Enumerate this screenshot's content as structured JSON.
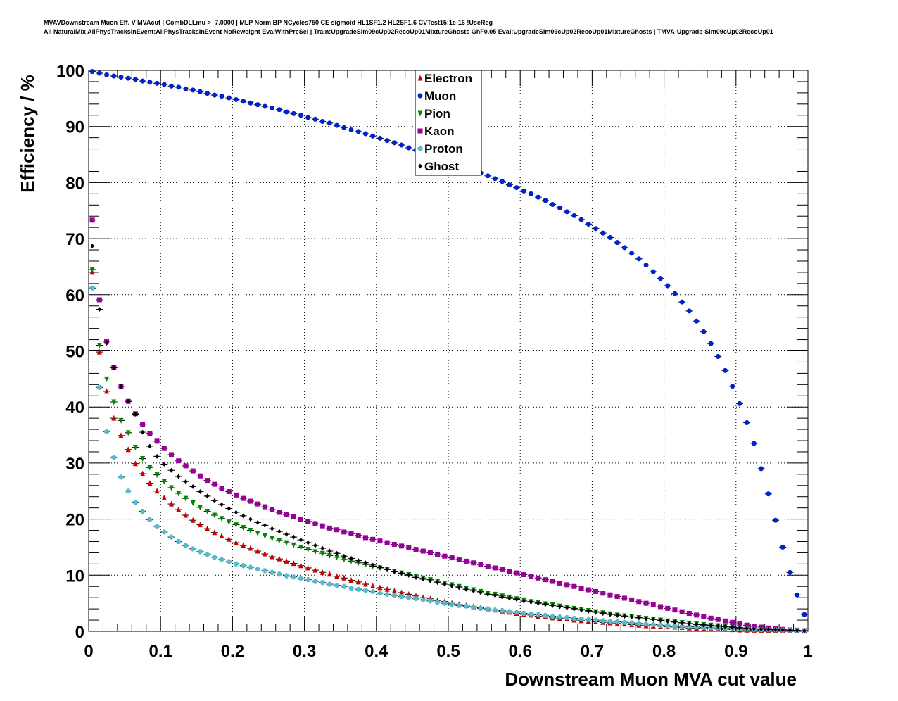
{
  "header": {
    "line1": "MVAVDownstream Muon Eff. V MVAcut | CombDLLmu > -7.0000 | MLP Norm BP NCycles750 CE sigmoid HL1SF1.2 HL2SF1.6 CVTest15:1e-16 !UseReg",
    "line2": "All NaturalMix AllPhysTracksInEvent:AllPhysTracksInEvent NoReweight EvalWithPreSel | Train:UpgradeSim09cUp02RecoUp01MixtureGhosts GhF0.05 Eval:UpgradeSim09cUp02RecoUp01MixtureGhosts | TMVA-Upgrade-Sim09cUp02RecoUp01"
  },
  "chart_data": {
    "type": "scatter",
    "title": "",
    "xlabel": "Downstream Muon MVA cut value",
    "ylabel": "Efficiency / %",
    "xlim": [
      0,
      1
    ],
    "ylim": [
      0,
      100
    ],
    "xticks": [
      "0",
      "0.1",
      "0.2",
      "0.3",
      "0.4",
      "0.5",
      "0.6",
      "0.7",
      "0.8",
      "0.9",
      "1"
    ],
    "yticks": [
      "0",
      "10",
      "20",
      "30",
      "40",
      "50",
      "60",
      "70",
      "80",
      "90",
      "100"
    ],
    "grid": "dotted",
    "legend_position": "top-center",
    "x": [
      0.005,
      0.015,
      0.025,
      0.035,
      0.045,
      0.055,
      0.065,
      0.075,
      0.085,
      0.095,
      0.105,
      0.115,
      0.125,
      0.135,
      0.145,
      0.155,
      0.165,
      0.175,
      0.185,
      0.195,
      0.205,
      0.215,
      0.225,
      0.235,
      0.245,
      0.255,
      0.265,
      0.275,
      0.285,
      0.295,
      0.305,
      0.315,
      0.325,
      0.335,
      0.345,
      0.355,
      0.365,
      0.375,
      0.385,
      0.395,
      0.405,
      0.415,
      0.425,
      0.435,
      0.445,
      0.455,
      0.465,
      0.475,
      0.485,
      0.495,
      0.505,
      0.515,
      0.525,
      0.535,
      0.545,
      0.555,
      0.565,
      0.575,
      0.585,
      0.595,
      0.605,
      0.615,
      0.625,
      0.635,
      0.645,
      0.655,
      0.665,
      0.675,
      0.685,
      0.695,
      0.705,
      0.715,
      0.725,
      0.735,
      0.745,
      0.755,
      0.765,
      0.775,
      0.785,
      0.795,
      0.805,
      0.815,
      0.825,
      0.835,
      0.845,
      0.855,
      0.865,
      0.875,
      0.885,
      0.895,
      0.905,
      0.915,
      0.925,
      0.935,
      0.945,
      0.955,
      0.965,
      0.975,
      0.985,
      0.995
    ],
    "series": [
      {
        "name": "Electron",
        "marker": "triangle-up",
        "color": "#cc0000",
        "values": [
          64.0,
          49.8,
          42.8,
          38.0,
          34.9,
          32.4,
          29.9,
          28.1,
          26.4,
          25.0,
          23.8,
          22.7,
          21.7,
          20.7,
          19.8,
          19.0,
          18.3,
          17.6,
          17.0,
          16.4,
          15.8,
          15.3,
          14.8,
          14.3,
          13.8,
          13.3,
          12.9,
          12.5,
          12.1,
          11.7,
          11.3,
          10.9,
          10.5,
          10.2,
          9.8,
          9.5,
          9.1,
          8.8,
          8.4,
          8.1,
          7.8,
          7.5,
          7.2,
          6.9,
          6.6,
          6.3,
          6.0,
          5.8,
          5.5,
          5.3,
          5.0,
          4.8,
          4.6,
          4.4,
          4.2,
          4.0,
          3.8,
          3.6,
          3.4,
          3.2,
          3.0,
          2.9,
          2.7,
          2.6,
          2.4,
          2.3,
          2.2,
          2.0,
          1.9,
          1.8,
          1.7,
          1.6,
          1.5,
          1.4,
          1.3,
          1.2,
          1.1,
          1.0,
          0.95,
          0.9,
          0.8,
          0.75,
          0.7,
          0.6,
          0.55,
          0.5,
          0.45,
          0.4,
          0.35,
          0.3,
          0.25,
          0.22,
          0.2,
          0.17,
          0.14,
          0.12,
          0.1,
          0.08,
          0.06,
          0.05
        ]
      },
      {
        "name": "Muon",
        "marker": "circle",
        "color": "#0022cc",
        "values": [
          99.8,
          99.5,
          99.2,
          99.0,
          98.8,
          98.6,
          98.4,
          98.1,
          97.9,
          97.7,
          97.5,
          97.2,
          97.0,
          96.7,
          96.5,
          96.2,
          95.9,
          95.6,
          95.4,
          95.1,
          94.8,
          94.5,
          94.2,
          93.9,
          93.6,
          93.3,
          93.0,
          92.6,
          92.3,
          92.0,
          91.6,
          91.3,
          90.9,
          90.6,
          90.2,
          89.8,
          89.4,
          89.1,
          88.7,
          88.3,
          87.9,
          87.5,
          87.1,
          86.7,
          86.2,
          85.8,
          85.4,
          85.0,
          84.5,
          84.1,
          83.6,
          83.1,
          82.7,
          82.2,
          81.7,
          81.2,
          80.7,
          80.2,
          79.6,
          79.1,
          78.5,
          78.0,
          77.4,
          76.8,
          76.1,
          75.5,
          74.8,
          74.1,
          73.4,
          72.6,
          71.8,
          71.0,
          70.2,
          69.3,
          68.4,
          67.4,
          66.4,
          65.3,
          64.1,
          62.9,
          61.6,
          60.2,
          58.7,
          57.1,
          55.3,
          53.4,
          51.3,
          49.0,
          46.5,
          43.7,
          40.6,
          37.2,
          33.5,
          29.0,
          24.5,
          19.8,
          15.0,
          10.5,
          6.5,
          3.0
        ]
      },
      {
        "name": "Pion",
        "marker": "triangle-down",
        "color": "#008800",
        "values": [
          64.5,
          51.0,
          45.0,
          40.9,
          37.6,
          35.4,
          32.8,
          30.8,
          29.2,
          27.9,
          26.7,
          25.6,
          24.6,
          23.7,
          22.9,
          22.1,
          21.4,
          20.7,
          20.1,
          19.5,
          19.0,
          18.5,
          18.0,
          17.5,
          17.0,
          16.6,
          16.2,
          15.8,
          15.4,
          15.0,
          14.6,
          14.2,
          13.9,
          13.5,
          13.2,
          12.8,
          12.5,
          12.2,
          11.9,
          11.6,
          11.3,
          11.0,
          10.7,
          10.4,
          10.1,
          9.8,
          9.5,
          9.2,
          8.9,
          8.6,
          8.3,
          8.0,
          7.7,
          7.4,
          7.1,
          6.8,
          6.6,
          6.3,
          6.1,
          5.8,
          5.6,
          5.3,
          5.1,
          4.9,
          4.7,
          4.5,
          4.3,
          4.1,
          3.9,
          3.7,
          3.5,
          3.3,
          3.1,
          2.9,
          2.75,
          2.6,
          2.45,
          2.3,
          2.15,
          2.0,
          1.85,
          1.7,
          1.55,
          1.4,
          1.3,
          1.2,
          1.1,
          1.0,
          0.9,
          0.8,
          0.7,
          0.6,
          0.5,
          0.45,
          0.4,
          0.35,
          0.3,
          0.25,
          0.2,
          0.1
        ]
      },
      {
        "name": "Kaon",
        "marker": "square",
        "color": "#990099",
        "values": [
          73.3,
          59.1,
          51.7,
          47.1,
          43.7,
          41.0,
          38.8,
          36.9,
          35.3,
          33.9,
          32.6,
          31.5,
          30.4,
          29.5,
          28.6,
          27.7,
          26.9,
          26.2,
          25.5,
          24.9,
          24.3,
          23.7,
          23.2,
          22.7,
          22.2,
          21.7,
          21.2,
          20.8,
          20.4,
          20.0,
          19.6,
          19.2,
          18.8,
          18.4,
          18.1,
          17.7,
          17.4,
          17.1,
          16.7,
          16.4,
          16.1,
          15.8,
          15.5,
          15.2,
          14.9,
          14.6,
          14.3,
          14.0,
          13.7,
          13.4,
          13.1,
          12.8,
          12.5,
          12.2,
          11.9,
          11.6,
          11.3,
          11.0,
          10.7,
          10.4,
          10.1,
          9.8,
          9.5,
          9.2,
          8.9,
          8.6,
          8.3,
          8.0,
          7.7,
          7.4,
          7.1,
          6.8,
          6.5,
          6.2,
          5.9,
          5.6,
          5.3,
          5.0,
          4.7,
          4.4,
          4.1,
          3.8,
          3.5,
          3.2,
          2.9,
          2.6,
          2.35,
          2.1,
          1.85,
          1.6,
          1.35,
          1.1,
          0.9,
          0.75,
          0.6,
          0.45,
          0.35,
          0.25,
          0.15,
          0.1
        ]
      },
      {
        "name": "Proton",
        "marker": "cross",
        "color": "#55bbcc",
        "values": [
          61.2,
          43.5,
          35.6,
          31.0,
          27.5,
          25.0,
          23.0,
          21.4,
          19.9,
          18.7,
          17.7,
          16.8,
          16.0,
          15.3,
          14.7,
          14.2,
          13.7,
          13.2,
          12.8,
          12.4,
          12.0,
          11.7,
          11.4,
          11.1,
          10.8,
          10.5,
          10.2,
          9.9,
          9.7,
          9.4,
          9.2,
          8.9,
          8.7,
          8.4,
          8.2,
          8.0,
          7.7,
          7.5,
          7.3,
          7.1,
          6.8,
          6.6,
          6.4,
          6.2,
          6.0,
          5.8,
          5.6,
          5.4,
          5.2,
          5.0,
          4.8,
          4.6,
          4.5,
          4.3,
          4.1,
          4.0,
          3.8,
          3.7,
          3.5,
          3.4,
          3.2,
          3.1,
          2.95,
          2.8,
          2.7,
          2.55,
          2.45,
          2.3,
          2.2,
          2.1,
          2.0,
          1.9,
          1.8,
          1.7,
          1.6,
          1.5,
          1.4,
          1.3,
          1.2,
          1.1,
          1.0,
          0.95,
          0.9,
          0.85,
          0.8,
          0.7,
          0.65,
          0.6,
          0.55,
          0.5,
          0.45,
          0.4,
          0.35,
          0.3,
          0.28,
          0.25,
          0.22,
          0.2,
          0.15,
          0.1
        ]
      },
      {
        "name": "Ghost",
        "marker": "diamond",
        "color": "#000000",
        "values": [
          68.7,
          57.4,
          51.4,
          47.0,
          43.7,
          41.0,
          38.7,
          35.5,
          33.0,
          31.2,
          29.8,
          28.7,
          27.6,
          26.7,
          25.8,
          24.9,
          24.1,
          23.3,
          22.6,
          21.9,
          21.2,
          20.6,
          20.0,
          19.4,
          18.9,
          18.3,
          17.8,
          17.3,
          16.8,
          16.3,
          15.8,
          15.3,
          14.8,
          14.3,
          13.9,
          13.4,
          13.0,
          12.6,
          12.2,
          11.8,
          11.4,
          11.0,
          10.6,
          10.3,
          10.0,
          9.6,
          9.3,
          9.0,
          8.7,
          8.4,
          8.1,
          7.8,
          7.5,
          7.2,
          6.9,
          6.6,
          6.4,
          6.1,
          5.9,
          5.7,
          5.4,
          5.2,
          5.0,
          4.8,
          4.6,
          4.4,
          4.2,
          4.0,
          3.8,
          3.6,
          3.4,
          3.2,
          3.0,
          2.85,
          2.7,
          2.55,
          2.4,
          2.25,
          2.1,
          1.95,
          1.8,
          1.65,
          1.5,
          1.35,
          1.2,
          1.1,
          1.0,
          0.9,
          0.8,
          0.7,
          0.6,
          0.5,
          0.45,
          0.4,
          0.35,
          0.3,
          0.25,
          0.2,
          0.15,
          0.1
        ]
      }
    ]
  }
}
